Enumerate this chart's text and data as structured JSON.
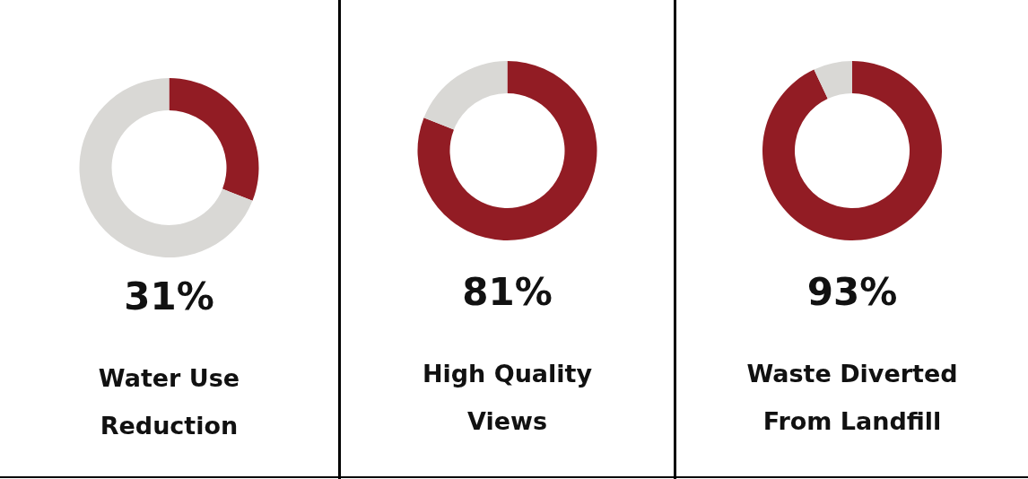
{
  "chart_data": [
    {
      "type": "donut",
      "title": "Water Use\nReduction",
      "categories": [
        null,
        null
      ],
      "values": [
        31,
        69
      ],
      "colors": [
        "#921c24",
        "#d9d8d5"
      ],
      "annotations": [
        "31%"
      ]
    },
    {
      "type": "donut",
      "title": "High Quality\nViews",
      "categories": [
        null,
        null
      ],
      "values": [
        81,
        19
      ],
      "colors": [
        "#921c24",
        "#d9d8d5"
      ],
      "annotations": [
        "81%"
      ]
    },
    {
      "type": "donut",
      "title": "Waste Diverted\nFrom Landfill",
      "categories": [
        null,
        null
      ],
      "values": [
        93,
        7
      ],
      "colors": [
        "#921c24",
        "#d9d8d5"
      ],
      "annotations": [
        "93%"
      ]
    }
  ]
}
